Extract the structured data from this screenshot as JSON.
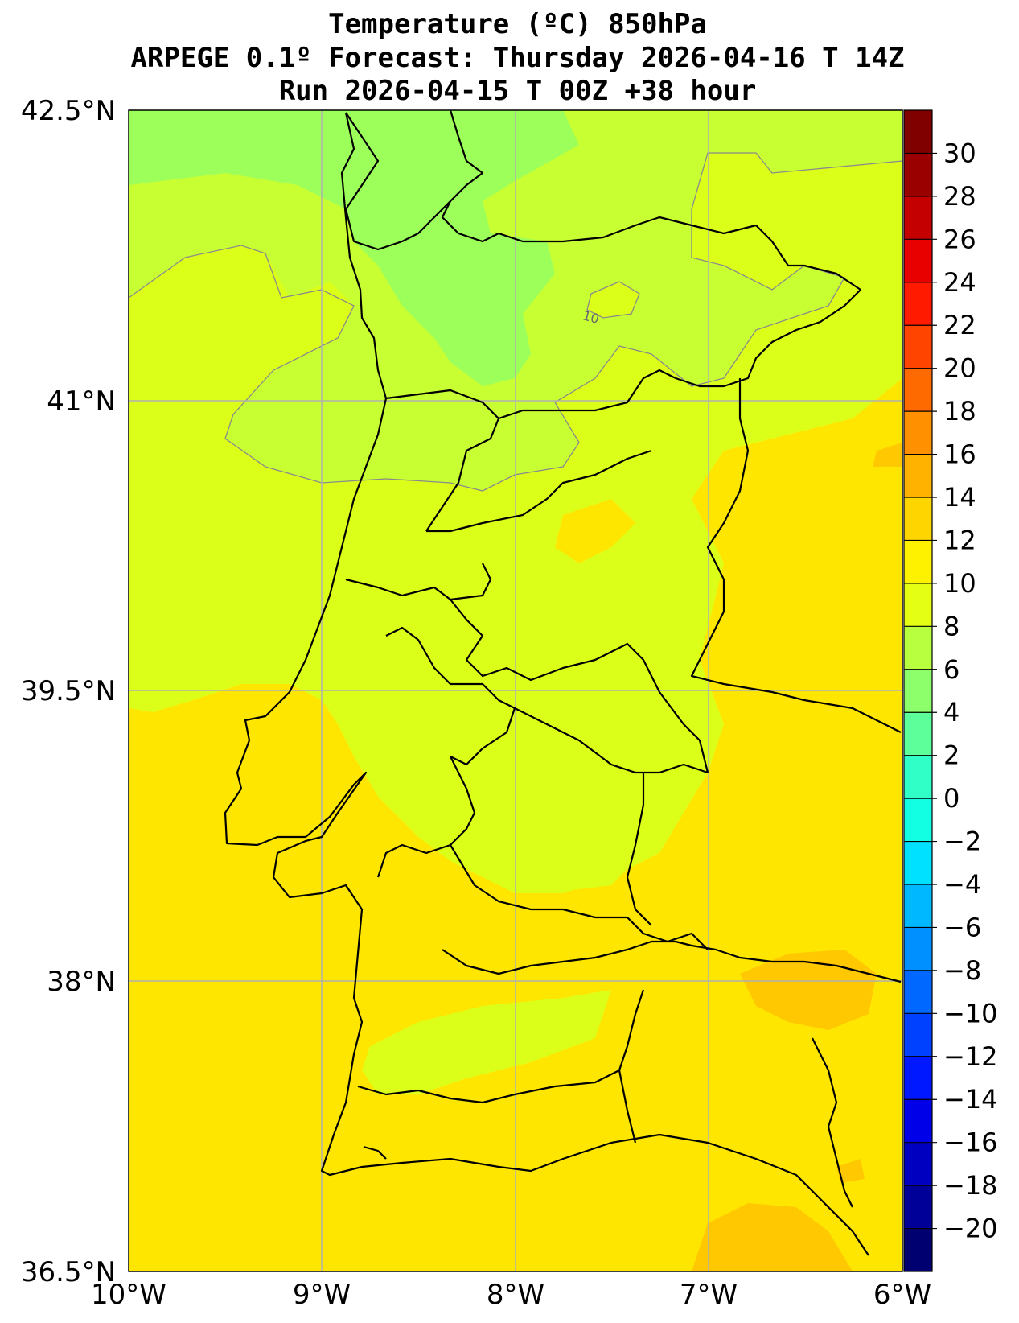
{
  "title": {
    "line1": "Temperature (ºC) 850hPa",
    "line2": "ARPEGE 0.1º Forecast: Thursday 2026-04-16 T 14Z",
    "line3": "Run 2026-04-15 T 00Z +38 hour"
  },
  "axes": {
    "lat_labels": [
      "42.5°N",
      "41°N",
      "39.5°N",
      "38°N",
      "36.5°N"
    ],
    "lon_labels": [
      "10°W",
      "9°W",
      "8°W",
      "7°W",
      "6°W"
    ]
  },
  "contour_label": "10",
  "colorbar": {
    "labels": [
      "30",
      "28",
      "26",
      "24",
      "22",
      "20",
      "18",
      "16",
      "14",
      "12",
      "10",
      "8",
      "6",
      "4",
      "2",
      "0",
      "−2",
      "−4",
      "−6",
      "−8",
      "−10",
      "−12",
      "−14",
      "−16",
      "−18",
      "−20"
    ],
    "colors": [
      "#800000",
      "#9a0000",
      "#c40000",
      "#e80000",
      "#ff1a00",
      "#ff4400",
      "#ff6a00",
      "#ff9000",
      "#ffb300",
      "#ffd500",
      "#fff200",
      "#e4ff13",
      "#b8ff40",
      "#8cff6b",
      "#5cff9a",
      "#30ffc7",
      "#13ffe4",
      "#00e0ff",
      "#00b8ff",
      "#0090ff",
      "#0068ff",
      "#0040ff",
      "#0018ff",
      "#0000e8",
      "#0000c0",
      "#000098",
      "#000070"
    ]
  },
  "colors": {
    "warm_yellow": "#ffe600",
    "yellow_green": "#dcff1a",
    "light_green": "#c8ff33",
    "green": "#9cff5a",
    "orange_patch": "#ffc800",
    "border": "#000000",
    "grid": "#b0b0b0"
  }
}
